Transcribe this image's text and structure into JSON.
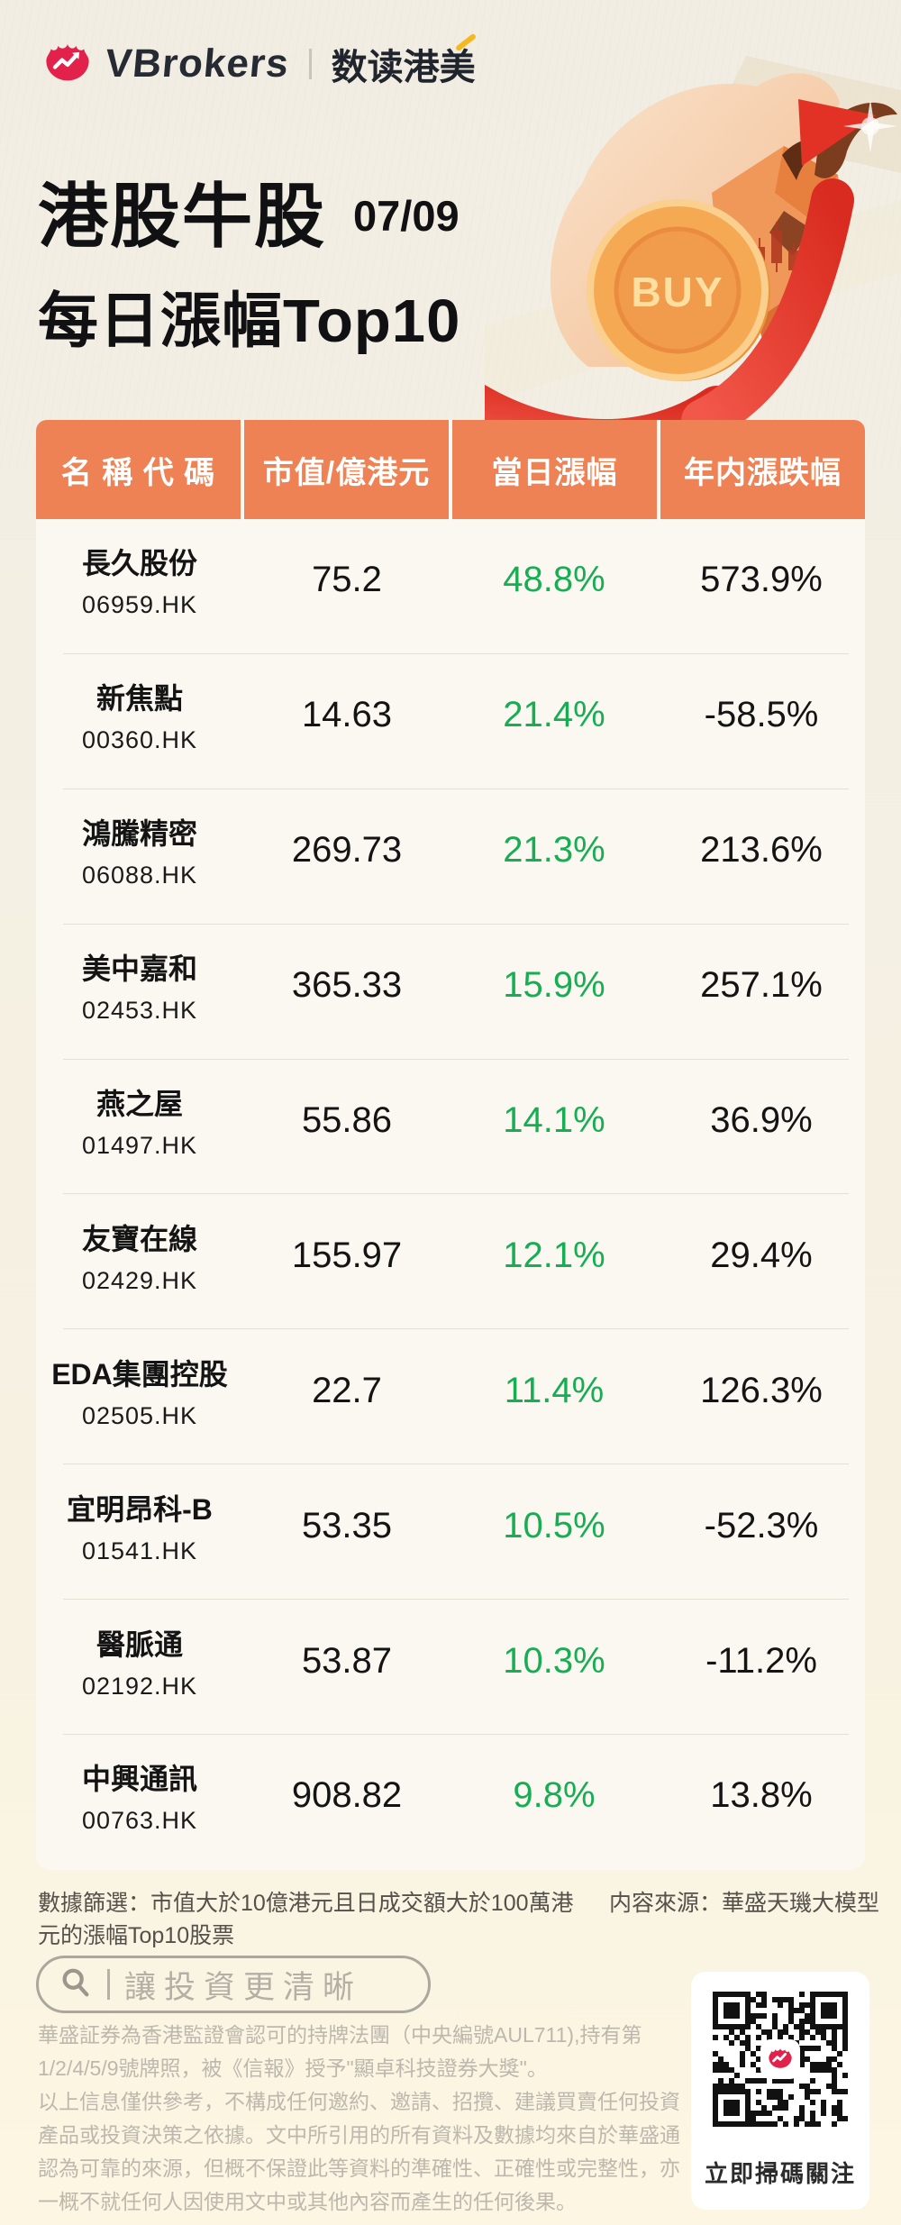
{
  "brand": {
    "name": "VBrokers",
    "divider": "|",
    "sub": "数读港美"
  },
  "title": {
    "line1": "港股牛股",
    "date": "07/09",
    "line2": "每日漲幅Top10"
  },
  "illustration": {
    "coin_label": "BUY"
  },
  "table": {
    "headers": [
      "名 稱 代 碼",
      "市值/億港元",
      "當日漲幅",
      "年内漲跌幅"
    ],
    "rows": [
      {
        "name": "長久股份",
        "code": "06959.HK",
        "cap": "75.2",
        "day": "48.8%",
        "ytd": "573.9%"
      },
      {
        "name": "新焦點",
        "code": "00360.HK",
        "cap": "14.63",
        "day": "21.4%",
        "ytd": "-58.5%"
      },
      {
        "name": "鴻騰精密",
        "code": "06088.HK",
        "cap": "269.73",
        "day": "21.3%",
        "ytd": "213.6%"
      },
      {
        "name": "美中嘉和",
        "code": "02453.HK",
        "cap": "365.33",
        "day": "15.9%",
        "ytd": "257.1%"
      },
      {
        "name": "燕之屋",
        "code": "01497.HK",
        "cap": "55.86",
        "day": "14.1%",
        "ytd": "36.9%"
      },
      {
        "name": "友寶在線",
        "code": "02429.HK",
        "cap": "155.97",
        "day": "12.1%",
        "ytd": "29.4%"
      },
      {
        "name": "EDA集團控股",
        "code": "02505.HK",
        "cap": "22.7",
        "day": "11.4%",
        "ytd": "126.3%"
      },
      {
        "name": "宜明昂科-B",
        "code": "01541.HK",
        "cap": "53.35",
        "day": "10.5%",
        "ytd": "-52.3%"
      },
      {
        "name": "醫脈通",
        "code": "02192.HK",
        "cap": "53.87",
        "day": "10.3%",
        "ytd": "-11.2%"
      },
      {
        "name": "中興通訊",
        "code": "00763.HK",
        "cap": "908.82",
        "day": "9.8%",
        "ytd": "13.8%"
      }
    ]
  },
  "footer": {
    "filter_note": "數據篩選：市值大於10億港元且日成交額大於100萬港元的漲幅Top10股票",
    "source_note": "内容來源：華盛天璣大模型",
    "search_text": "讓投資更清晰",
    "disclaimer": [
      "華盛証券為香港監證會認可的持牌法團（中央編號AUL711),持有第1/2/4/5/9號牌照，被《信報》授予\"顯卓科技證券大獎\"。",
      "以上信息僅供參考，不構成任何邀約、邀請、招攬、建議買賣任何投資產品或投資決策之依據。文中所引用的所有資料及數據均來自於華盛通認為可靠的來源，但概不保證此等資料的準確性、正確性或完整性，亦一概不就任何人因使用文中或其他內容而產生的任何後果。"
    ],
    "qr_caption": "立即掃碼關注"
  },
  "colors": {
    "header_orange": "#EF8254",
    "gain_green": "#17AD53",
    "brand_red": "#E3224C",
    "arrow_red": "#E23226",
    "coin_gold": "#F6A953",
    "page_top": "#F1EDE3",
    "page_bottom": "#FCF6E2"
  },
  "chart_data": {
    "type": "table",
    "title": "港股牛股 07/09 每日漲幅Top10",
    "columns": [
      "名稱代碼",
      "市值/億港元",
      "當日漲幅",
      "年内漲跌幅"
    ],
    "rows": [
      [
        "長久股份 06959.HK",
        75.2,
        48.8,
        573.9
      ],
      [
        "新焦點 00360.HK",
        14.63,
        21.4,
        -58.5
      ],
      [
        "鴻騰精密 06088.HK",
        269.73,
        21.3,
        213.6
      ],
      [
        "美中嘉和 02453.HK",
        365.33,
        15.9,
        257.1
      ],
      [
        "燕之屋 01497.HK",
        55.86,
        14.1,
        36.9
      ],
      [
        "友寶在線 02429.HK",
        155.97,
        12.1,
        29.4
      ],
      [
        "EDA集團控股 02505.HK",
        22.7,
        11.4,
        126.3
      ],
      [
        "宜明昂科-B 01541.HK",
        53.35,
        10.5,
        -52.3
      ],
      [
        "醫脈通 02192.HK",
        53.87,
        10.3,
        -11.2
      ],
      [
        "中興通訊 00763.HK",
        908.82,
        9.8,
        13.8
      ]
    ],
    "units": {
      "市值": "億港元",
      "當日漲幅": "%",
      "年内漲跌幅": "%"
    }
  }
}
